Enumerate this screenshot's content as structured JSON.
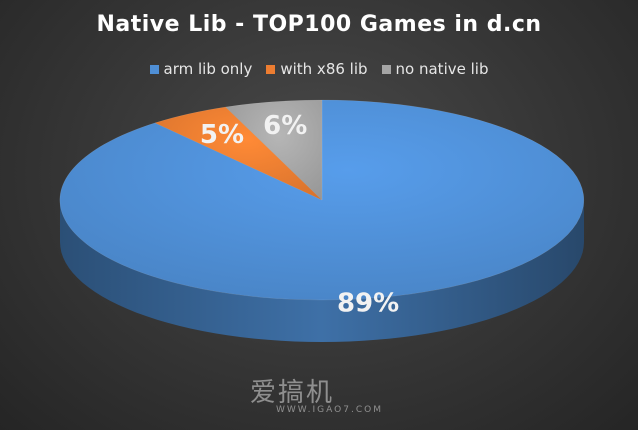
{
  "chart_data": {
    "type": "pie",
    "title": "Native Lib - TOP100 Games in d.cn",
    "legend_position": "top",
    "slices": [
      {
        "name": "arm lib only",
        "value": 89,
        "label": "89%",
        "color": "#4f8fd6"
      },
      {
        "name": "with x86 lib",
        "value": 5,
        "label": "5%",
        "color": "#ed7d31"
      },
      {
        "name": "no native lib",
        "value": 6,
        "label": "6%",
        "color": "#a5a5a5"
      }
    ]
  },
  "watermark": {
    "main": "爱搞机",
    "sub": "WWW.IGAO7.COM"
  }
}
